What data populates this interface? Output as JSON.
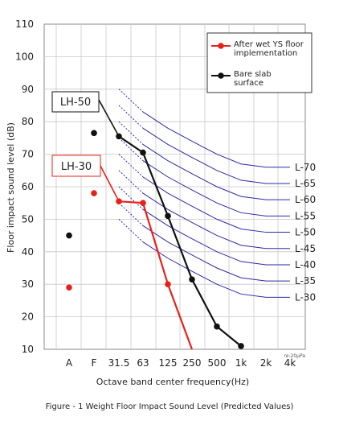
{
  "chart_data": {
    "type": "line",
    "categories": [
      "A",
      "F",
      "31.5",
      "63",
      "125",
      "250",
      "500",
      "1k",
      "2k",
      "4k"
    ],
    "xlabel": "Octave band center frequency(Hz)",
    "ylabel": "Floor impact sound level (dB)",
    "ylim": [
      10,
      110
    ],
    "yticks": [
      10,
      20,
      30,
      40,
      50,
      60,
      70,
      80,
      90,
      100,
      110
    ],
    "grid": true,
    "legend_placement": "top-right",
    "ref_note": "re:20μPa",
    "caption": "Figure - 1 Weight Floor Impact Sound Level (Predicted Values)",
    "series": [
      {
        "name": "After wet YS floor implementation",
        "color": "#e8201a",
        "box_label": "LH-30",
        "points": [
          {
            "x": "A",
            "y": 29
          },
          {
            "x": "F",
            "y": 58
          },
          {
            "x": "31.5",
            "y": 55.5
          },
          {
            "x": "63",
            "y": 55
          },
          {
            "x": "125",
            "y": 30
          },
          {
            "x": "250",
            "y": 10
          }
        ],
        "connect_from": "31.5"
      },
      {
        "name": "Bare slab surface",
        "color": "#111111",
        "box_label": "LH-50",
        "points": [
          {
            "x": "A",
            "y": 45
          },
          {
            "x": "F",
            "y": 76.5
          },
          {
            "x": "31.5",
            "y": 75.5
          },
          {
            "x": "63",
            "y": 70.5
          },
          {
            "x": "125",
            "y": 51
          },
          {
            "x": "250",
            "y": 31.5
          },
          {
            "x": "500",
            "y": 17
          },
          {
            "x": "1k",
            "y": 11
          }
        ],
        "connect_from": "31.5"
      }
    ],
    "reference_curves": {
      "color": "#2a2aa8",
      "labels": [
        "L-70",
        "L-65",
        "L-60",
        "L-55",
        "L-50",
        "L-45",
        "L-40",
        "L-35",
        "L-30"
      ],
      "levels_at_500": [
        70,
        65,
        60,
        55,
        50,
        45,
        40,
        35,
        30
      ],
      "offsets": {
        "31.5": 20,
        "63": 13,
        "125": 8,
        "250": 4,
        "500": 0,
        "1k": -3,
        "2k": -4,
        "4k": -4
      }
    }
  }
}
